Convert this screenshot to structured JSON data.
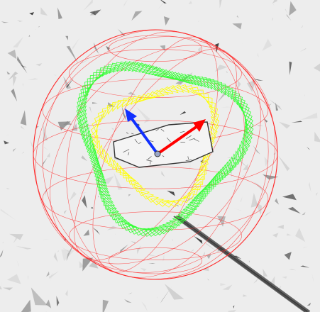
{
  "viewport": {
    "colors": {
      "background": "#ededed",
      "mesh_dark": "#2b2b2b",
      "mesh_mid": "#8a8a8a",
      "bounding_sphere": "#ff2b2b",
      "gizmo_x_axis": "#ff0000",
      "gizmo_y_axis": "#1030ff",
      "gizmo_origin": "#9aa6c8",
      "camera_trajectory_outer": "#33ff33",
      "camera_trajectory_inner": "#ffff00",
      "target_object_outline": "#333333"
    },
    "icons": {
      "bounding_sphere": "wireframe-sphere-icon",
      "gizmo": "transform-gizmo-icon",
      "outer_path": "camera-frustum-ring-icon",
      "inner_path": "camera-frustum-ring-icon",
      "target": "vehicle-mesh-icon"
    }
  }
}
